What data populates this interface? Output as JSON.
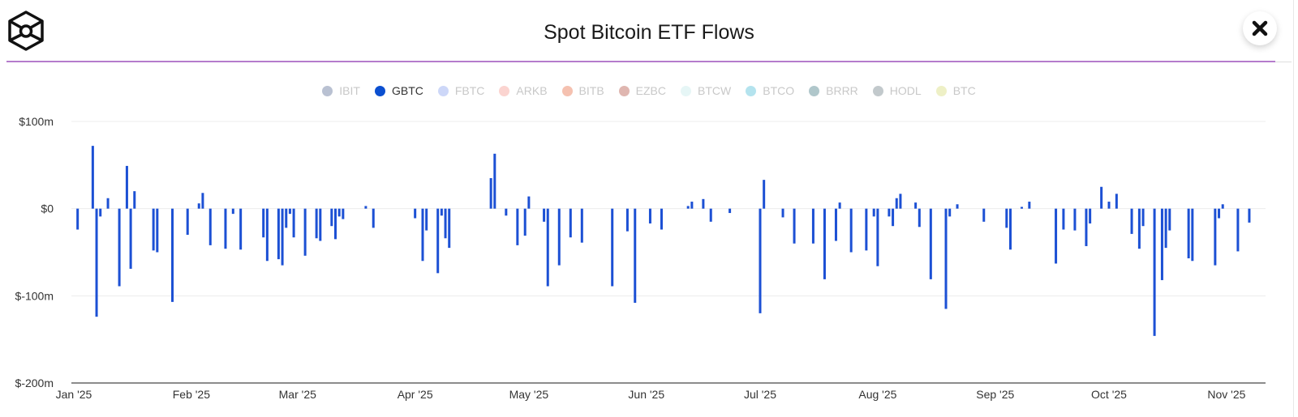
{
  "header": {
    "title": "Spot Bitcoin ETF Flows",
    "logo_icon": "hexagon-cube-logo",
    "close_icon": "close-icon"
  },
  "colors": {
    "accent_rule": "#b57ccc",
    "bar": "#1c50d4"
  },
  "legend": [
    {
      "label": "IBIT",
      "color": "#b9c1d2",
      "active": false
    },
    {
      "label": "GBTC",
      "color": "#0b4fd0",
      "active": true
    },
    {
      "label": "FBTC",
      "color": "#cdd7f8",
      "active": false
    },
    {
      "label": "ARKB",
      "color": "#fbd4d0",
      "active": false
    },
    {
      "label": "BITB",
      "color": "#f5c1b0",
      "active": false
    },
    {
      "label": "EZBC",
      "color": "#dfb6b0",
      "active": false
    },
    {
      "label": "BTCW",
      "color": "#e6f6f6",
      "active": false
    },
    {
      "label": "BTCO",
      "color": "#b4e3ee",
      "active": false
    },
    {
      "label": "BRRR",
      "color": "#b0c7cb",
      "active": false
    },
    {
      "label": "HODL",
      "color": "#c2c9cc",
      "active": false
    },
    {
      "label": "BTC",
      "color": "#eef0c6",
      "active": false
    }
  ],
  "chart_data": {
    "type": "bar",
    "title": "Spot Bitcoin ETF Flows",
    "xlabel": "",
    "ylabel": "",
    "ylim": [
      -200,
      100
    ],
    "y_unit": "$m",
    "y_ticks": [
      {
        "value": 100,
        "label": "$100m"
      },
      {
        "value": 0,
        "label": "$0"
      },
      {
        "value": -100,
        "label": "$-100m"
      },
      {
        "value": -200,
        "label": "$-200m"
      }
    ],
    "x_ticks": [
      {
        "date": "2025-01-01",
        "label": "Jan '25"
      },
      {
        "date": "2025-02-01",
        "label": "Feb '25"
      },
      {
        "date": "2025-03-01",
        "label": "Mar '25"
      },
      {
        "date": "2025-04-01",
        "label": "Apr '25"
      },
      {
        "date": "2025-05-01",
        "label": "May '25"
      },
      {
        "date": "2025-06-01",
        "label": "Jun '25"
      },
      {
        "date": "2025-07-01",
        "label": "Jul '25"
      },
      {
        "date": "2025-08-01",
        "label": "Aug '25"
      },
      {
        "date": "2025-09-01",
        "label": "Sep '25"
      },
      {
        "date": "2025-10-01",
        "label": "Oct '25"
      },
      {
        "date": "2025-11-01",
        "label": "Nov '25"
      }
    ],
    "grid": true,
    "legend_position": "top",
    "series": [
      {
        "name": "GBTC",
        "color": "#1c50d4",
        "points": [
          [
            "2025-01-02",
            -24
          ],
          [
            "2025-01-06",
            72
          ],
          [
            "2025-01-07",
            -124
          ],
          [
            "2025-01-08",
            -9
          ],
          [
            "2025-01-10",
            12
          ],
          [
            "2025-01-13",
            -89
          ],
          [
            "2025-01-15",
            49
          ],
          [
            "2025-01-16",
            -69
          ],
          [
            "2025-01-17",
            20
          ],
          [
            "2025-01-22",
            -48
          ],
          [
            "2025-01-23",
            -50
          ],
          [
            "2025-01-27",
            -107
          ],
          [
            "2025-01-31",
            -30
          ],
          [
            "2025-02-03",
            6
          ],
          [
            "2025-02-04",
            18
          ],
          [
            "2025-02-06",
            -42
          ],
          [
            "2025-02-10",
            -46
          ],
          [
            "2025-02-12",
            -6
          ],
          [
            "2025-02-14",
            -47
          ],
          [
            "2025-02-20",
            -33
          ],
          [
            "2025-02-21",
            -60
          ],
          [
            "2025-02-24",
            -58
          ],
          [
            "2025-02-25",
            -65
          ],
          [
            "2025-02-26",
            -22
          ],
          [
            "2025-02-27",
            -6
          ],
          [
            "2025-02-28",
            -33
          ],
          [
            "2025-03-03",
            -54
          ],
          [
            "2025-03-06",
            -34
          ],
          [
            "2025-03-07",
            -37
          ],
          [
            "2025-03-10",
            -20
          ],
          [
            "2025-03-11",
            -35
          ],
          [
            "2025-03-12",
            -9
          ],
          [
            "2025-03-13",
            -12
          ],
          [
            "2025-03-19",
            3
          ],
          [
            "2025-03-21",
            -22
          ],
          [
            "2025-04-01",
            -11
          ],
          [
            "2025-04-03",
            -60
          ],
          [
            "2025-04-04",
            -25
          ],
          [
            "2025-04-07",
            -74
          ],
          [
            "2025-04-08",
            -8
          ],
          [
            "2025-04-09",
            -34
          ],
          [
            "2025-04-10",
            -45
          ],
          [
            "2025-04-21",
            35
          ],
          [
            "2025-04-22",
            63
          ],
          [
            "2025-04-25",
            -8
          ],
          [
            "2025-04-28",
            -42
          ],
          [
            "2025-04-30",
            -31
          ],
          [
            "2025-05-01",
            14
          ],
          [
            "2025-05-05",
            -15
          ],
          [
            "2025-05-06",
            -89
          ],
          [
            "2025-05-09",
            -65
          ],
          [
            "2025-05-12",
            -33
          ],
          [
            "2025-05-15",
            -39
          ],
          [
            "2025-05-23",
            -89
          ],
          [
            "2025-05-27",
            -26
          ],
          [
            "2025-05-29",
            -108
          ],
          [
            "2025-06-02",
            -17
          ],
          [
            "2025-06-05",
            -24
          ],
          [
            "2025-06-12",
            3
          ],
          [
            "2025-06-13",
            8
          ],
          [
            "2025-06-16",
            11
          ],
          [
            "2025-06-18",
            -15
          ],
          [
            "2025-06-23",
            -5
          ],
          [
            "2025-07-01",
            -120
          ],
          [
            "2025-07-02",
            33
          ],
          [
            "2025-07-07",
            -10
          ],
          [
            "2025-07-10",
            -40
          ],
          [
            "2025-07-15",
            -40
          ],
          [
            "2025-07-18",
            -81
          ],
          [
            "2025-07-21",
            -37
          ],
          [
            "2025-07-22",
            7
          ],
          [
            "2025-07-25",
            -50
          ],
          [
            "2025-07-29",
            -48
          ],
          [
            "2025-07-31",
            -9
          ],
          [
            "2025-08-01",
            -66
          ],
          [
            "2025-08-04",
            -9
          ],
          [
            "2025-08-05",
            -20
          ],
          [
            "2025-08-06",
            12
          ],
          [
            "2025-08-07",
            17
          ],
          [
            "2025-08-11",
            7
          ],
          [
            "2025-08-12",
            -21
          ],
          [
            "2025-08-15",
            -81
          ],
          [
            "2025-08-19",
            -115
          ],
          [
            "2025-08-20",
            -9
          ],
          [
            "2025-08-22",
            5
          ],
          [
            "2025-08-29",
            -15
          ],
          [
            "2025-09-04",
            -22
          ],
          [
            "2025-09-05",
            -47
          ],
          [
            "2025-09-08",
            2
          ],
          [
            "2025-09-10",
            8
          ],
          [
            "2025-09-17",
            -63
          ],
          [
            "2025-09-19",
            -24
          ],
          [
            "2025-09-22",
            -25
          ],
          [
            "2025-09-25",
            -43
          ],
          [
            "2025-09-26",
            -17
          ],
          [
            "2025-09-29",
            25
          ],
          [
            "2025-10-01",
            8
          ],
          [
            "2025-10-03",
            17
          ],
          [
            "2025-10-07",
            -29
          ],
          [
            "2025-10-09",
            -46
          ],
          [
            "2025-10-10",
            -20
          ],
          [
            "2025-10-13",
            -146
          ],
          [
            "2025-10-15",
            -82
          ],
          [
            "2025-10-16",
            -45
          ],
          [
            "2025-10-17",
            -25
          ],
          [
            "2025-10-22",
            -57
          ],
          [
            "2025-10-23",
            -60
          ],
          [
            "2025-10-29",
            -65
          ],
          [
            "2025-10-30",
            -11
          ],
          [
            "2025-10-31",
            5
          ],
          [
            "2025-11-04",
            -49
          ],
          [
            "2025-11-07",
            -16
          ]
        ]
      }
    ]
  }
}
